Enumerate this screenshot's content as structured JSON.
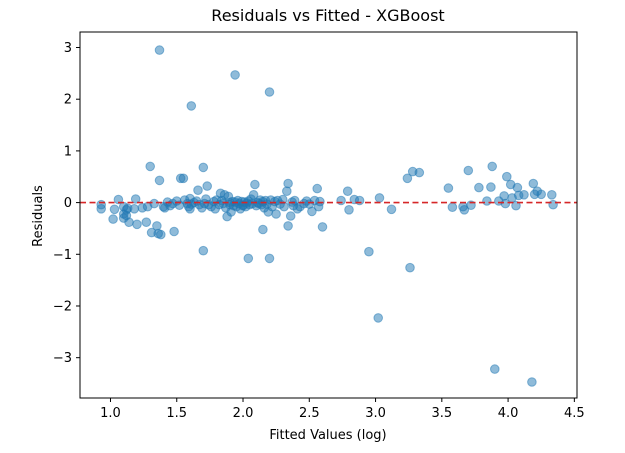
{
  "chart_data": {
    "type": "scatter",
    "title": "Residuals vs Fitted - XGBoost",
    "xlabel": "Fitted Values (log)",
    "ylabel": "Residuals",
    "xlim": [
      0.77,
      4.52
    ],
    "ylim": [
      -3.78,
      3.3
    ],
    "xticks": [
      1.0,
      1.5,
      2.0,
      2.5,
      3.0,
      3.5,
      4.0,
      4.5
    ],
    "xtick_labels": [
      "1.0",
      "1.5",
      "2.0",
      "2.5",
      "3.0",
      "3.5",
      "4.0",
      "4.5"
    ],
    "yticks": [
      3,
      2,
      1,
      0,
      -1,
      -2,
      -3
    ],
    "ytick_labels": [
      "3",
      "2",
      "1",
      "0",
      "−1",
      "−2",
      "−3"
    ],
    "grid": false,
    "reference_line": {
      "y": 0,
      "color": "#d62728",
      "style": "dashed"
    },
    "marker_color": "#1f77b4",
    "marker_alpha": 0.5,
    "points": [
      [
        0.93,
        -0.04
      ],
      [
        0.93,
        -0.12
      ],
      [
        1.02,
        -0.32
      ],
      [
        1.03,
        -0.13
      ],
      [
        1.06,
        0.06
      ],
      [
        1.1,
        -0.08
      ],
      [
        1.1,
        -0.22
      ],
      [
        1.1,
        -0.3
      ],
      [
        1.12,
        -0.14
      ],
      [
        1.12,
        -0.25
      ],
      [
        1.13,
        -0.11
      ],
      [
        1.14,
        -0.38
      ],
      [
        1.18,
        -0.12
      ],
      [
        1.19,
        0.07
      ],
      [
        1.2,
        -0.42
      ],
      [
        1.24,
        -0.1
      ],
      [
        1.27,
        -0.38
      ],
      [
        1.28,
        -0.08
      ],
      [
        1.3,
        0.7
      ],
      [
        1.31,
        -0.58
      ],
      [
        1.33,
        -0.02
      ],
      [
        1.35,
        -0.45
      ],
      [
        1.36,
        -0.6
      ],
      [
        1.37,
        0.43
      ],
      [
        1.38,
        -0.62
      ],
      [
        1.4,
        -0.08
      ],
      [
        1.41,
        -0.1
      ],
      [
        1.43,
        0.01
      ],
      [
        1.45,
        -0.06
      ],
      [
        1.47,
        -0.02
      ],
      [
        1.48,
        -0.56
      ],
      [
        1.5,
        0.03
      ],
      [
        1.52,
        -0.05
      ],
      [
        1.53,
        0.47
      ],
      [
        1.55,
        0.47
      ],
      [
        1.56,
        0.05
      ],
      [
        1.58,
        -0.02
      ],
      [
        1.59,
        -0.08
      ],
      [
        1.6,
        0.08
      ],
      [
        1.61,
        -0.03
      ],
      [
        1.63,
        0.0
      ],
      [
        1.65,
        0.03
      ],
      [
        1.66,
        0.24
      ],
      [
        1.67,
        -0.04
      ],
      [
        1.69,
        -0.1
      ],
      [
        1.7,
        0.68
      ],
      [
        1.7,
        -0.93
      ],
      [
        1.71,
        -0.02
      ],
      [
        1.72,
        0.07
      ],
      [
        1.73,
        0.32
      ],
      [
        1.74,
        -0.04
      ],
      [
        1.76,
        -0.08
      ],
      [
        1.78,
        0.02
      ],
      [
        1.79,
        -0.12
      ],
      [
        1.8,
        0.05
      ],
      [
        1.82,
        -0.04
      ],
      [
        1.83,
        0.18
      ],
      [
        1.84,
        0.04
      ],
      [
        1.85,
        -0.02
      ],
      [
        1.86,
        0.15
      ],
      [
        1.87,
        -0.1
      ],
      [
        1.88,
        -0.27
      ],
      [
        1.89,
        0.12
      ],
      [
        1.9,
        -0.04
      ],
      [
        1.91,
        -0.18
      ],
      [
        1.92,
        0.02
      ],
      [
        1.93,
        -0.06
      ],
      [
        1.94,
        0.01
      ],
      [
        1.95,
        -0.08
      ],
      [
        1.96,
        0.04
      ],
      [
        1.97,
        -0.02
      ],
      [
        1.98,
        -0.12
      ],
      [
        1.99,
        0.02
      ],
      [
        2.0,
        -0.05
      ],
      [
        2.01,
        0.01
      ],
      [
        2.02,
        -0.08
      ],
      [
        2.03,
        -0.01
      ],
      [
        2.04,
        0.03
      ],
      [
        2.05,
        -0.04
      ],
      [
        2.06,
        0.07
      ],
      [
        2.07,
        -0.02
      ],
      [
        2.08,
        0.15
      ],
      [
        2.09,
        0.35
      ],
      [
        2.1,
        -0.06
      ],
      [
        2.11,
        0.0
      ],
      [
        2.12,
        -0.02
      ],
      [
        2.13,
        0.05
      ],
      [
        2.14,
        -0.04
      ],
      [
        2.15,
        0.02
      ],
      [
        2.16,
        -0.1
      ],
      [
        2.17,
        0.04
      ],
      [
        2.18,
        -0.03
      ],
      [
        2.19,
        -0.18
      ],
      [
        2.21,
        0.05
      ],
      [
        2.22,
        -0.08
      ],
      [
        2.24,
        0.02
      ],
      [
        2.25,
        -0.22
      ],
      [
        2.26,
        0.04
      ],
      [
        2.28,
        -0.03
      ],
      [
        2.3,
        0.06
      ],
      [
        2.31,
        -0.08
      ],
      [
        2.33,
        0.22
      ],
      [
        2.34,
        0.37
      ],
      [
        2.34,
        -0.45
      ],
      [
        2.36,
        -0.26
      ],
      [
        2.37,
        0.01
      ],
      [
        2.38,
        -0.06
      ],
      [
        2.39,
        0.04
      ],
      [
        2.41,
        -0.12
      ],
      [
        2.43,
        -0.08
      ],
      [
        2.46,
        -0.02
      ],
      [
        2.48,
        0.03
      ],
      [
        2.5,
        -0.03
      ],
      [
        2.52,
        -0.17
      ],
      [
        2.54,
        0.04
      ],
      [
        2.56,
        0.27
      ],
      [
        2.57,
        -0.08
      ],
      [
        2.58,
        0.02
      ],
      [
        2.6,
        -0.47
      ],
      [
        2.74,
        0.04
      ],
      [
        2.79,
        0.22
      ],
      [
        2.8,
        -0.14
      ],
      [
        2.84,
        0.06
      ],
      [
        2.88,
        0.04
      ],
      [
        2.95,
        -0.95
      ],
      [
        3.02,
        -2.23
      ],
      [
        3.03,
        0.09
      ],
      [
        3.12,
        -0.13
      ],
      [
        3.24,
        0.47
      ],
      [
        3.26,
        -1.26
      ],
      [
        3.28,
        0.6
      ],
      [
        3.33,
        0.58
      ],
      [
        3.55,
        0.28
      ],
      [
        3.58,
        -0.09
      ],
      [
        3.66,
        -0.08
      ],
      [
        3.67,
        -0.14
      ],
      [
        3.7,
        0.62
      ],
      [
        3.72,
        -0.05
      ],
      [
        3.78,
        0.29
      ],
      [
        3.84,
        0.03
      ],
      [
        3.87,
        0.3
      ],
      [
        3.88,
        0.7
      ],
      [
        3.9,
        -3.22
      ],
      [
        3.93,
        0.03
      ],
      [
        3.97,
        0.13
      ],
      [
        3.98,
        -0.02
      ],
      [
        3.99,
        0.5
      ],
      [
        4.02,
        0.35
      ],
      [
        4.03,
        0.09
      ],
      [
        4.06,
        -0.06
      ],
      [
        4.07,
        0.29
      ],
      [
        4.08,
        0.14
      ],
      [
        4.12,
        0.15
      ],
      [
        4.18,
        -3.47
      ],
      [
        4.19,
        0.37
      ],
      [
        4.2,
        0.16
      ],
      [
        4.22,
        0.22
      ],
      [
        4.25,
        0.16
      ],
      [
        4.33,
        0.15
      ],
      [
        4.34,
        -0.04
      ],
      [
        1.37,
        2.95
      ],
      [
        1.61,
        1.87
      ],
      [
        1.94,
        2.47
      ],
      [
        2.2,
        2.14
      ],
      [
        2.04,
        -1.08
      ],
      [
        2.2,
        -1.08
      ],
      [
        2.15,
        -0.52
      ],
      [
        2.0,
        -0.06
      ],
      [
        1.6,
        -0.12
      ],
      [
        1.9,
        0.0
      ]
    ]
  }
}
